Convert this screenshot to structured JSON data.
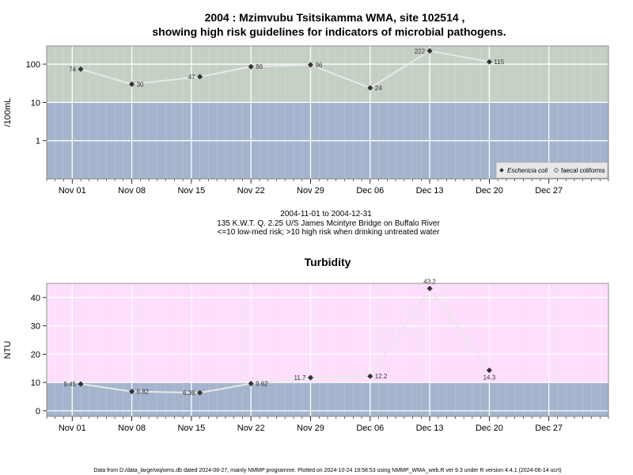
{
  "header": {
    "title_line1": "2004 : Mzimvubu Tsitsikamma WMA, site 102514 ,",
    "title_line2": "showing high risk guidelines for indicators of microbial pathogens."
  },
  "subtitle": {
    "line1": "2004-11-01 to 2004-12-31",
    "line2": "135 K.W.T. Q. 2.25 U/S James Mcintyre Bridge on Buffalo River",
    "line3": "<=10 low-med risk; >10 high risk when drinking untreated water"
  },
  "footer": {
    "text": "Data from D:/data_large/wq/wms.db dated 2024-08-27, mainly NMMP programme. Plotted on 2024-10-24 19:58:53 using NMMP_WMA_web.R ver 9.3 under R version 4.4.1 (2024-06-14 ucrt)"
  },
  "colors": {
    "low_risk_band": "#a4b4cc",
    "high_risk_band_microbial": "#c5d0c4",
    "high_risk_band_turbidity": "#fddffd",
    "series_line": "#e8e8e8",
    "marker": "#333333",
    "grid": "#ffffff"
  },
  "chart_data": [
    {
      "type": "line",
      "title": "",
      "ylabel": "/100mL",
      "y_scale": "log",
      "ylim": [
        0.1,
        300
      ],
      "y_ticks": [
        1,
        10,
        100
      ],
      "y_tick_labels": [
        "1",
        "10",
        "100"
      ],
      "threshold": 10,
      "xlim": [
        "2004-10-29",
        "2005-01-03"
      ],
      "x_ticks": [
        "2004-11-01",
        "2004-11-08",
        "2004-11-15",
        "2004-11-22",
        "2004-11-29",
        "2004-12-06",
        "2004-12-13",
        "2004-12-20",
        "2004-12-27"
      ],
      "x_tick_labels": [
        "Nov 01",
        "Nov 08",
        "Nov 15",
        "Nov 22",
        "Nov 29",
        "Dec 06",
        "Dec 13",
        "Dec 20",
        "Dec 27"
      ],
      "grid": true,
      "legend_position": "bottom-right",
      "legend": [
        "Eschericia coli",
        "faecal coliforms"
      ],
      "series": [
        {
          "name": "Eschericia coli",
          "x": [
            "2004-11-02",
            "2004-11-08",
            "2004-11-16",
            "2004-11-22",
            "2004-11-29",
            "2004-12-06",
            "2004-12-13",
            "2004-12-20"
          ],
          "values": [
            74,
            30,
            47,
            86,
            96,
            24,
            222,
            115
          ],
          "labels": [
            "74",
            "30",
            "47",
            "86",
            "96",
            "24",
            "222",
            "115"
          ]
        }
      ]
    },
    {
      "type": "line",
      "title": "Turbidity",
      "ylabel": "NTU",
      "y_scale": "linear",
      "ylim": [
        -2,
        45
      ],
      "y_ticks": [
        0,
        10,
        20,
        30,
        40
      ],
      "y_tick_labels": [
        "0",
        "10",
        "20",
        "30",
        "40"
      ],
      "threshold": 10,
      "xlim": [
        "2004-10-29",
        "2005-01-03"
      ],
      "x_ticks": [
        "2004-11-01",
        "2004-11-08",
        "2004-11-15",
        "2004-11-22",
        "2004-11-29",
        "2004-12-06",
        "2004-12-13",
        "2004-12-20",
        "2004-12-27"
      ],
      "x_tick_labels": [
        "Nov 01",
        "Nov 08",
        "Nov 15",
        "Nov 22",
        "Nov 29",
        "Dec 06",
        "Dec 13",
        "Dec 20",
        "Dec 27"
      ],
      "grid": true,
      "series": [
        {
          "x": [
            "2004-11-02",
            "2004-11-08",
            "2004-11-16",
            "2004-11-22",
            "2004-11-29",
            "2004-12-06",
            "2004-12-13",
            "2004-12-20"
          ],
          "values": [
            9.45,
            6.82,
            6.36,
            9.62,
            11.7,
            12.2,
            43.2,
            14.3
          ],
          "labels": [
            "9.45",
            "6.82",
            "6.36",
            "9.62",
            "11.7",
            "12.2",
            "43.2",
            "14.3"
          ]
        }
      ]
    }
  ]
}
